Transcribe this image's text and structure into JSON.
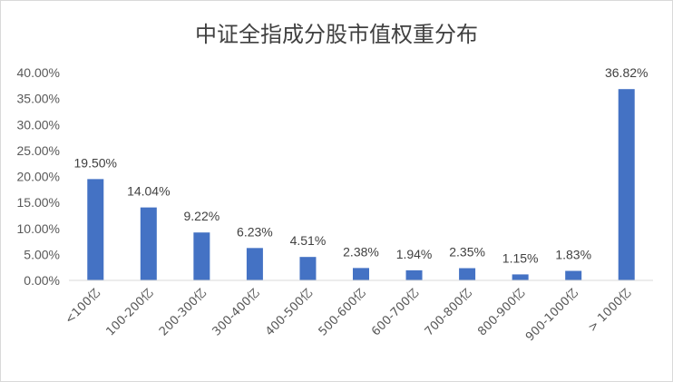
{
  "chart_data": {
    "type": "bar",
    "title": "中证全指成分股市值权重分布",
    "xlabel": "",
    "ylabel": "",
    "categories": [
      "<100亿",
      "100-200亿",
      "200-300亿",
      "300-400亿",
      "400-500亿",
      "500-600亿",
      "600-700亿",
      "700-800亿",
      "800-900亿",
      "900-1000亿",
      "> 1000亿"
    ],
    "values": [
      19.5,
      14.04,
      9.22,
      6.23,
      4.51,
      2.38,
      1.94,
      2.35,
      1.15,
      1.83,
      36.82
    ],
    "data_labels": [
      "19.50%",
      "14.04%",
      "9.22%",
      "6.23%",
      "4.51%",
      "2.38%",
      "1.94%",
      "2.35%",
      "1.15%",
      "1.83%",
      "36.82%"
    ],
    "ylim": [
      0,
      40
    ],
    "yticks": [
      0,
      5,
      10,
      15,
      20,
      25,
      30,
      35,
      40
    ],
    "ytick_labels": [
      "0.00%",
      "5.00%",
      "10.00%",
      "15.00%",
      "20.00%",
      "25.00%",
      "30.00%",
      "35.00%",
      "40.00%"
    ],
    "grid": false,
    "legend": "none",
    "bar_color": "#4472C4"
  }
}
